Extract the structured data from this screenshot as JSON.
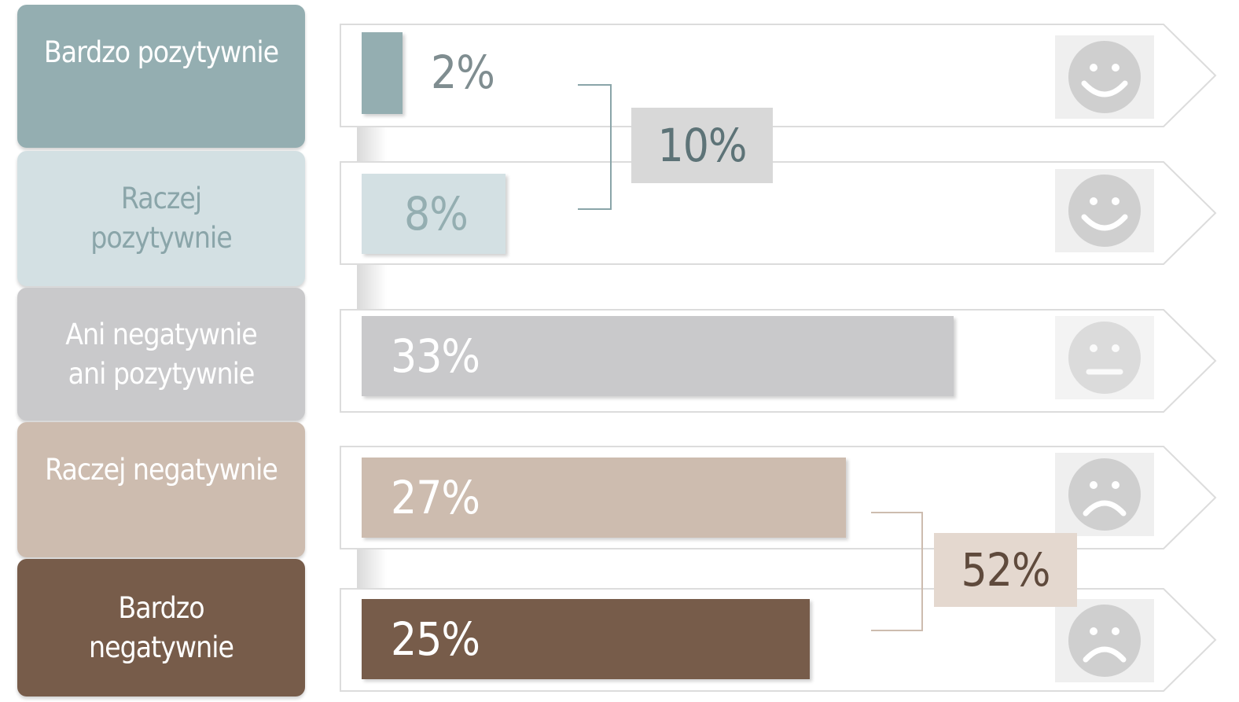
{
  "chart_data": {
    "type": "bar",
    "orientation": "horizontal",
    "categories": [
      "Bardzo pozytywnie",
      "Raczej pozytywnie",
      "Ani negatywnie ani pozytywnie",
      "Raczej negatywnie",
      "Bardzo negatywnie"
    ],
    "values": [
      2,
      8,
      33,
      27,
      25
    ],
    "value_labels": [
      "2%",
      "8%",
      "33%",
      "27%",
      "25%"
    ],
    "category_labels": [
      "Bardzo pozytywnie",
      "Raczej\npozytywnie",
      "Ani negatywnie\nani pozytywnie",
      "Raczej negatywnie",
      "Bardzo\nnegatywnie"
    ],
    "category_colors": [
      "#94aeb1",
      "#d3e0e3",
      "#c9c9cb",
      "#cdbcaf",
      "#775c4a"
    ],
    "face_icons": [
      "smile-icon",
      "smile-icon",
      "neutral-face-icon",
      "frown-icon",
      "frown-icon"
    ],
    "xlim": [
      0,
      33
    ],
    "groups": [
      {
        "label": "10%",
        "value": 10,
        "members": [
          0,
          1
        ],
        "color": "#d8d8d8",
        "text_color": "#5d7377"
      },
      {
        "label": "52%",
        "value": 52,
        "members": [
          3,
          4
        ],
        "color": "#e4d8cf",
        "text_color": "#5f4a3c"
      }
    ]
  }
}
